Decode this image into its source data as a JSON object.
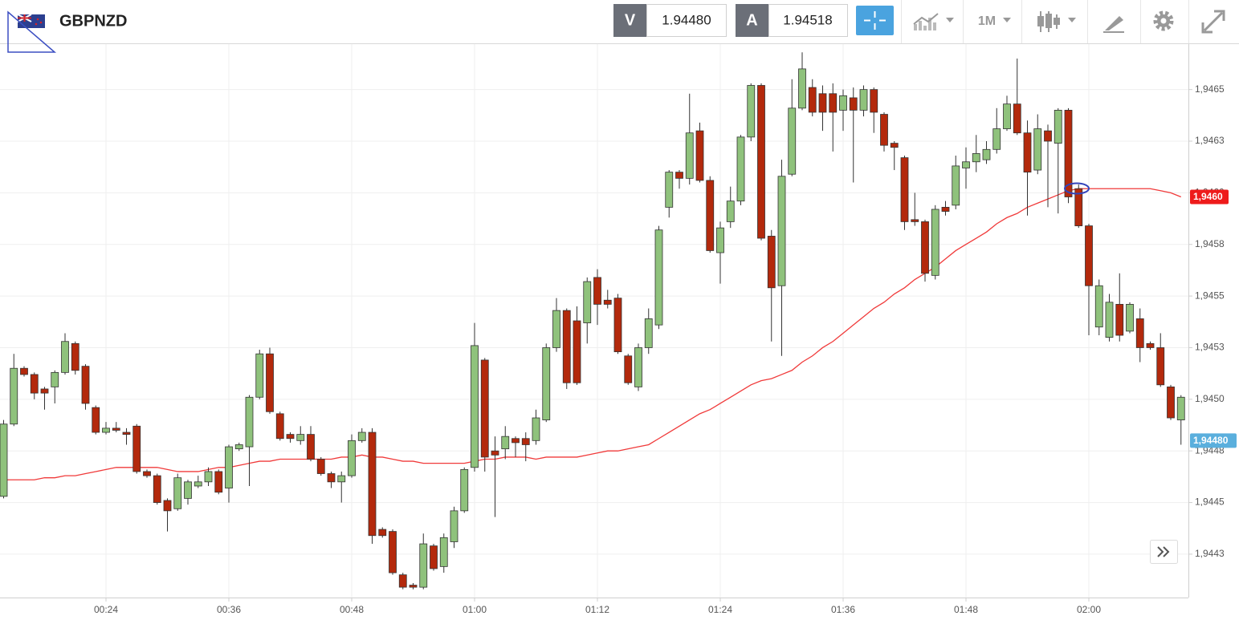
{
  "header": {
    "symbol": "GBPNZD",
    "sell_label": "V",
    "sell": "1.94480",
    "buy_label": "A",
    "buy": "1.94518",
    "timeframe": "1M"
  },
  "chart_data": {
    "type": "candlestick",
    "title": "GBPNZD",
    "categories": [
      null,
      null,
      null,
      null,
      null,
      null,
      null,
      null,
      null,
      null,
      "00:24",
      null,
      null,
      null,
      null,
      null,
      null,
      null,
      null,
      null,
      null,
      null,
      "00:36",
      null,
      null,
      null,
      null,
      null,
      null,
      null,
      null,
      null,
      null,
      null,
      "00:48",
      null,
      null,
      null,
      null,
      null,
      null,
      null,
      null,
      null,
      null,
      null,
      "01:00",
      null,
      null,
      null,
      null,
      null,
      null,
      null,
      null,
      null,
      null,
      null,
      "01:12",
      null,
      null,
      null,
      null,
      null,
      null,
      null,
      null,
      null,
      null,
      null,
      "01:24",
      null,
      null,
      null,
      null,
      null,
      null,
      null,
      null,
      null,
      null,
      null,
      "01:36",
      null,
      null,
      null,
      null,
      null,
      null,
      null,
      null,
      null,
      null,
      null,
      "01:48",
      null,
      null,
      null,
      null,
      null,
      null,
      null,
      null,
      null,
      null,
      null,
      "02:00",
      null,
      null,
      null,
      null,
      null,
      null,
      null,
      null,
      null
    ],
    "open": [
      1.94453,
      1.94488,
      1.94515,
      1.94512,
      1.94505,
      1.94506,
      1.94513,
      1.94527,
      1.94516,
      1.94496,
      1.94484,
      1.94486,
      1.94484,
      1.94487,
      1.94465,
      1.94463,
      1.94451,
      1.94447,
      1.94452,
      1.94458,
      1.9446,
      1.94465,
      1.94457,
      1.94476,
      1.94477,
      1.94501,
      1.94522,
      1.94493,
      1.94483,
      1.9448,
      1.94483,
      1.94471,
      1.94464,
      1.9446,
      1.94463,
      1.9448,
      1.94484,
      1.94437,
      1.94436,
      1.94415,
      1.9441,
      1.94409,
      1.94429,
      1.94419,
      1.94431,
      1.94446,
      1.94467,
      1.94519,
      1.94475,
      1.94476,
      1.94481,
      1.94481,
      1.9448,
      1.9449,
      1.94525,
      1.94543,
      1.94538,
      1.94537,
      1.94559,
      1.94548,
      1.94549,
      1.94521,
      1.94506,
      1.94525,
      1.94536,
      1.94593,
      1.9461,
      1.94607,
      1.9463,
      1.94606,
      1.94571,
      1.94586,
      1.94596,
      1.94627,
      1.94652,
      1.94579,
      1.94555,
      1.94609,
      1.94641,
      1.94651,
      1.94648,
      1.94648,
      1.9464,
      1.94646,
      1.9464,
      1.9465,
      1.94638,
      1.94624,
      1.94617,
      1.94587,
      1.94586,
      1.9456,
      1.94593,
      1.94594,
      1.94612,
      1.94615,
      1.94616,
      1.94621,
      1.94631,
      1.94643,
      1.94629,
      1.94611,
      1.9463,
      1.94624,
      1.9464,
      1.94602,
      1.94584,
      1.94535,
      1.9453,
      1.94546,
      1.94533,
      1.94539,
      1.94527,
      1.94525,
      1.94506,
      1.9449
    ],
    "high": [
      1.9449,
      1.94522,
      1.94516,
      1.94513,
      1.94506,
      1.94514,
      1.94532,
      1.94528,
      1.94517,
      1.94497,
      1.94489,
      1.94489,
      1.94486,
      1.94488,
      1.94466,
      1.94464,
      1.94452,
      1.94464,
      1.94461,
      1.94463,
      1.94467,
      1.94466,
      1.94478,
      1.94479,
      1.94502,
      1.94524,
      1.94525,
      1.94494,
      1.94484,
      1.94487,
      1.94487,
      1.94472,
      1.94465,
      1.94465,
      1.94483,
      1.94486,
      1.94486,
      1.94438,
      1.94437,
      1.94416,
      1.94411,
      1.94435,
      1.9443,
      1.94435,
      1.94448,
      1.94467,
      1.94537,
      1.9452,
      1.94482,
      1.94487,
      1.94482,
      1.94484,
      1.94495,
      1.94527,
      1.94549,
      1.94544,
      1.94545,
      1.94559,
      1.94563,
      1.94553,
      1.94551,
      1.94522,
      1.94527,
      1.94544,
      1.94584,
      1.94611,
      1.94611,
      1.94648,
      1.94634,
      1.94608,
      1.94586,
      1.94603,
      1.94628,
      1.94653,
      1.94653,
      1.94582,
      1.94616,
      1.94655,
      1.94668,
      1.94655,
      1.94652,
      1.94653,
      1.9465,
      1.94651,
      1.94652,
      1.94651,
      1.94639,
      1.94625,
      1.94618,
      1.946,
      1.94587,
      1.94594,
      1.94596,
      1.94618,
      1.94622,
      1.94628,
      1.94625,
      1.94641,
      1.94647,
      1.94665,
      1.94635,
      1.94638,
      1.94633,
      1.94641,
      1.94641,
      1.94604,
      1.94585,
      1.94558,
      1.94551,
      1.94561,
      1.94547,
      1.94544,
      1.94528,
      1.94532,
      1.94507,
      1.94502
    ],
    "low": [
      1.94452,
      1.94487,
      1.94511,
      1.945,
      1.94495,
      1.94498,
      1.94512,
      1.94512,
      1.94495,
      1.94483,
      1.94483,
      1.94484,
      1.94478,
      1.94464,
      1.94462,
      1.94449,
      1.94436,
      1.94446,
      1.94449,
      1.94457,
      1.94458,
      1.94454,
      1.9445,
      1.94475,
      1.94458,
      1.945,
      1.94493,
      1.9448,
      1.94479,
      1.94478,
      1.9447,
      1.94463,
      1.94457,
      1.9445,
      1.94462,
      1.94479,
      1.9443,
      1.94433,
      1.94415,
      1.94408,
      1.94408,
      1.94408,
      1.94417,
      1.94416,
      1.94428,
      1.94445,
      1.94465,
      1.94465,
      1.94443,
      1.94471,
      1.94472,
      1.9447,
      1.94478,
      1.94489,
      1.94523,
      1.94505,
      1.94507,
      1.94527,
      1.94536,
      1.94544,
      1.94522,
      1.94507,
      1.94504,
      1.94522,
      1.94534,
      1.94588,
      1.94602,
      1.94604,
      1.94605,
      1.94571,
      1.94556,
      1.94583,
      1.94594,
      1.94625,
      1.94577,
      1.94528,
      1.94521,
      1.94608,
      1.9464,
      1.94637,
      1.9463,
      1.9462,
      1.9463,
      1.94605,
      1.94637,
      1.94629,
      1.9462,
      1.94611,
      1.94582,
      1.94584,
      1.94557,
      1.94558,
      1.94589,
      1.94592,
      1.94602,
      1.9461,
      1.94614,
      1.94619,
      1.9463,
      1.94628,
      1.94589,
      1.94609,
      1.94593,
      1.9459,
      1.94595,
      1.94583,
      1.94531,
      1.94531,
      1.94528,
      1.94528,
      1.94532,
      1.94518,
      1.94524,
      1.94506,
      1.9449,
      1.94478
    ],
    "close": [
      1.94488,
      1.94515,
      1.94512,
      1.94503,
      1.94503,
      1.94513,
      1.94528,
      1.94514,
      1.94498,
      1.94484,
      1.94486,
      1.94485,
      1.94483,
      1.94465,
      1.94463,
      1.9445,
      1.94446,
      1.94462,
      1.9446,
      1.9446,
      1.94465,
      1.94455,
      1.94477,
      1.94478,
      1.94501,
      1.94522,
      1.94494,
      1.94481,
      1.94481,
      1.94483,
      1.94471,
      1.94464,
      1.9446,
      1.94463,
      1.9448,
      1.94484,
      1.94434,
      1.94434,
      1.94416,
      1.94409,
      1.94409,
      1.9443,
      1.94418,
      1.94433,
      1.94446,
      1.94466,
      1.94526,
      1.94472,
      1.94473,
      1.94482,
      1.94479,
      1.94478,
      1.94491,
      1.94525,
      1.94543,
      1.94508,
      1.94508,
      1.94557,
      1.94546,
      1.94546,
      1.94523,
      1.94508,
      1.94525,
      1.94539,
      1.94582,
      1.9461,
      1.94607,
      1.94629,
      1.94606,
      1.94572,
      1.94583,
      1.94596,
      1.94627,
      1.94652,
      1.94578,
      1.94554,
      1.94608,
      1.94641,
      1.9466,
      1.94639,
      1.94639,
      1.94639,
      1.94647,
      1.9464,
      1.9465,
      1.94639,
      1.94623,
      1.94622,
      1.94586,
      1.94586,
      1.94561,
      1.94592,
      1.94591,
      1.94613,
      1.94615,
      1.94619,
      1.94621,
      1.94631,
      1.94643,
      1.94629,
      1.9461,
      1.94631,
      1.94625,
      1.9464,
      1.94598,
      1.94584,
      1.94555,
      1.94555,
      1.94547,
      1.94531,
      1.94546,
      1.94525,
      1.94525,
      1.94507,
      1.94491,
      1.94501
    ],
    "up_color": "#8fc27c",
    "down_color": "#b3290c",
    "ma": {
      "color": "#f03a3a",
      "values": [
        1.94461,
        1.94461,
        1.94461,
        1.94461,
        1.94462,
        1.94462,
        1.94463,
        1.94463,
        1.94464,
        1.94465,
        1.94466,
        1.94467,
        1.94467,
        1.94467,
        1.94467,
        1.94467,
        1.94466,
        1.94465,
        1.94465,
        1.94465,
        1.94466,
        1.94467,
        1.94467,
        1.94468,
        1.94469,
        1.9447,
        1.9447,
        1.94471,
        1.94471,
        1.94471,
        1.94471,
        1.94471,
        1.94471,
        1.94472,
        1.94472,
        1.94473,
        1.94472,
        1.94472,
        1.94471,
        1.9447,
        1.9447,
        1.94469,
        1.94469,
        1.94469,
        1.94469,
        1.94469,
        1.9447,
        1.94471,
        1.94471,
        1.94472,
        1.94472,
        1.94472,
        1.94471,
        1.94472,
        1.94472,
        1.94472,
        1.94472,
        1.94473,
        1.94474,
        1.94475,
        1.94475,
        1.94476,
        1.94477,
        1.94478,
        1.94481,
        1.94484,
        1.94487,
        1.9449,
        1.94493,
        1.94495,
        1.94498,
        1.94501,
        1.94504,
        1.94507,
        1.94509,
        1.9451,
        1.94512,
        1.94514,
        1.94518,
        1.94521,
        1.94525,
        1.94528,
        1.94532,
        1.94536,
        1.9454,
        1.94544,
        1.94547,
        1.94551,
        1.94554,
        1.94558,
        1.94561,
        1.94564,
        1.94568,
        1.94572,
        1.94575,
        1.94578,
        1.94581,
        1.94585,
        1.94588,
        1.9459,
        1.94593,
        1.94595,
        1.94597,
        1.94599,
        1.94601,
        1.94602,
        1.94602,
        1.94602,
        1.94602,
        1.94602,
        1.94602,
        1.94602,
        1.94602,
        1.94601,
        1.946,
        1.94598
      ]
    },
    "ylim": [
      1.94404,
      1.94672
    ],
    "yticks": [
      {
        "value": 1.94425,
        "label": "1,9443"
      },
      {
        "value": 1.9445,
        "label": "1,9445"
      },
      {
        "value": 1.94475,
        "label": "1,9448"
      },
      {
        "value": 1.945,
        "label": "1,9450"
      },
      {
        "value": 1.94525,
        "label": "1,9453"
      },
      {
        "value": 1.9455,
        "label": "1,9455"
      },
      {
        "value": 1.94575,
        "label": "1,9458"
      },
      {
        "value": 1.946,
        "label": "1,9460"
      },
      {
        "value": 1.94625,
        "label": "1,9463"
      },
      {
        "value": 1.9465,
        "label": "1,9465"
      }
    ],
    "grid": true,
    "ma_marker": {
      "value": 1.94598,
      "label": "1,9460",
      "color": "#ee1b1b"
    },
    "price_marker": {
      "value": 1.9448,
      "label": "1,94480",
      "color": "#5aafdd"
    }
  }
}
